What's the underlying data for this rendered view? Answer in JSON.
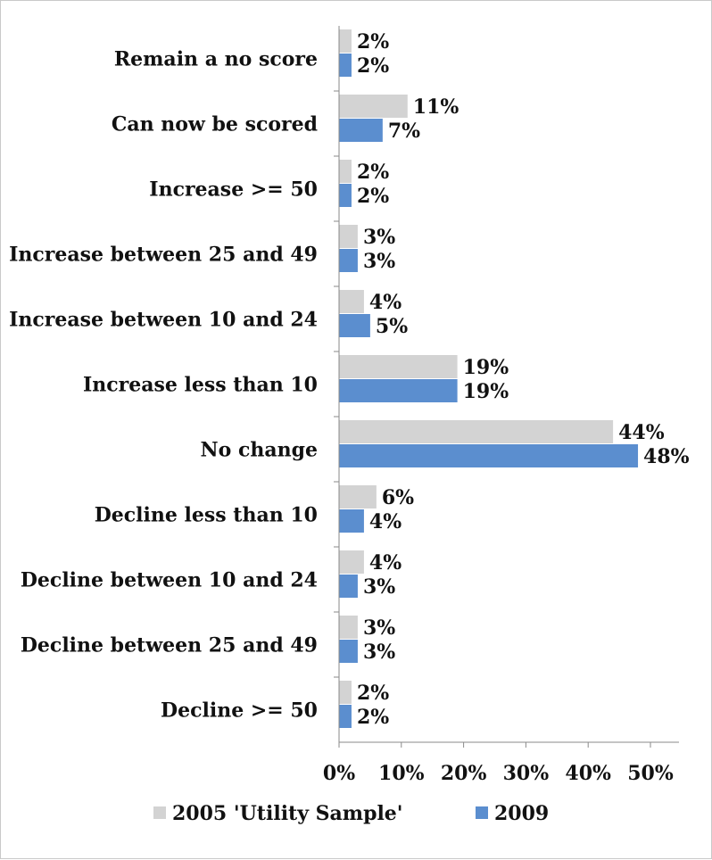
{
  "chart_data": {
    "type": "bar",
    "orientation": "horizontal",
    "categories": [
      "Remain a no score",
      "Can now be scored",
      "Increase >= 50",
      "Increase between 25 and 49",
      "Increase between 10 and 24",
      "Increase less than 10",
      "No change",
      "Decline less than 10",
      "Decline between 10 and 24",
      "Decline between 25 and 49",
      "Decline >= 50"
    ],
    "series": [
      {
        "name": "2005 'Utility Sample'",
        "color": "#d3d3d3",
        "values": [
          2,
          11,
          2,
          3,
          4,
          19,
          44,
          6,
          4,
          3,
          2
        ],
        "labels": [
          "2%",
          "11%",
          "2%",
          "3%",
          "4%",
          "19%",
          "44%",
          "6%",
          "4%",
          "3%",
          "2%"
        ]
      },
      {
        "name": "2009",
        "color": "#5b8ecf",
        "values": [
          2,
          7,
          2,
          3,
          5,
          19,
          48,
          4,
          3,
          3,
          2
        ],
        "labels": [
          "2%",
          "7%",
          "2%",
          "3%",
          "5%",
          "19%",
          "48%",
          "4%",
          "3%",
          "3%",
          "2%"
        ]
      }
    ],
    "xlim": [
      0,
      50
    ],
    "x_ticks": [
      "0%",
      "10%",
      "20%",
      "30%",
      "40%",
      "50%"
    ],
    "x_tick_values": [
      0,
      10,
      20,
      30,
      40,
      50
    ],
    "grid": false,
    "legend_position": "bottom",
    "title": "",
    "xlabel": "",
    "ylabel": ""
  }
}
